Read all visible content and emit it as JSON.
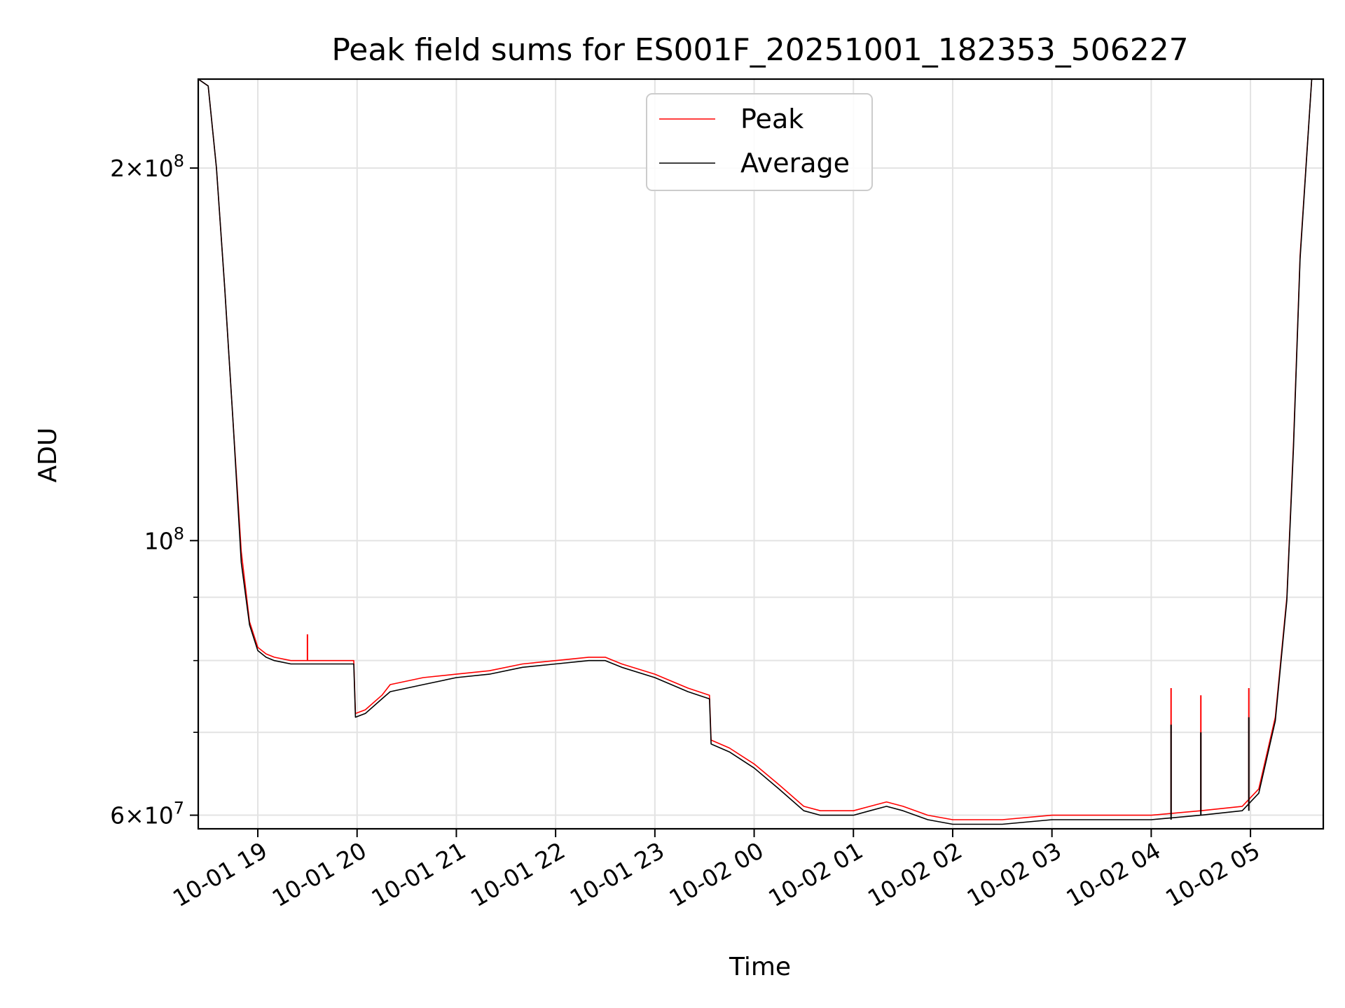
{
  "chart_data": {
    "type": "line",
    "title": "Peak field sums for ES001F_20251001_182353_506227",
    "xlabel": "Time",
    "ylabel": "ADU",
    "yscale": "log",
    "xlim": [
      "2025-10-01 18:24",
      "2025-10-02 05:44"
    ],
    "ylim": [
      58500000,
      236000000
    ],
    "grid": true,
    "legend_position": "top-center",
    "x_ticks": [
      "10-01 19",
      "10-01 20",
      "10-01 21",
      "10-01 22",
      "10-01 23",
      "10-02 00",
      "10-02 01",
      "10-02 02",
      "10-02 03",
      "10-02 04",
      "10-02 05"
    ],
    "y_major_ticks": [
      {
        "value": 60000000,
        "mantissa": "6",
        "exp": "7"
      },
      {
        "value": 100000000,
        "mantissa": "",
        "exp": "8"
      },
      {
        "value": 200000000,
        "mantissa": "2",
        "exp": "8"
      }
    ],
    "y_minor_ticks": [
      70000000,
      80000000,
      90000000
    ],
    "series": [
      {
        "name": "Peak",
        "color": "#ff0000",
        "x": [
          "2025-10-01 18:24",
          "2025-10-01 18:30",
          "2025-10-01 18:35",
          "2025-10-01 18:40",
          "2025-10-01 18:45",
          "2025-10-01 18:50",
          "2025-10-01 18:55",
          "2025-10-01 19:00",
          "2025-10-01 19:05",
          "2025-10-01 19:10",
          "2025-10-01 19:20",
          "2025-10-01 19:30",
          "2025-10-01 19:40",
          "2025-10-01 19:50",
          "2025-10-01 19:58",
          "2025-10-01 19:59",
          "2025-10-01 20:05",
          "2025-10-01 20:15",
          "2025-10-01 20:20",
          "2025-10-01 20:40",
          "2025-10-01 21:00",
          "2025-10-01 21:20",
          "2025-10-01 21:40",
          "2025-10-01 22:00",
          "2025-10-01 22:20",
          "2025-10-01 22:30",
          "2025-10-01 22:40",
          "2025-10-01 23:00",
          "2025-10-01 23:20",
          "2025-10-01 23:33",
          "2025-10-01 23:34",
          "2025-10-01 23:45",
          "2025-10-02 00:00",
          "2025-10-02 00:15",
          "2025-10-02 00:30",
          "2025-10-02 00:40",
          "2025-10-02 01:00",
          "2025-10-02 01:10",
          "2025-10-02 01:20",
          "2025-10-02 01:30",
          "2025-10-02 01:45",
          "2025-10-02 02:00",
          "2025-10-02 02:30",
          "2025-10-02 03:00",
          "2025-10-02 03:30",
          "2025-10-02 04:00",
          "2025-10-02 04:30",
          "2025-10-02 04:55",
          "2025-10-02 05:05",
          "2025-10-02 05:15",
          "2025-10-02 05:22",
          "2025-10-02 05:26",
          "2025-10-02 05:30",
          "2025-10-02 05:37",
          "2025-10-02 05:44"
        ],
        "values": [
          236000000,
          233000000,
          200000000,
          160000000,
          125000000,
          98000000,
          86000000,
          82000000,
          81000000,
          80500000,
          80000000,
          80000000,
          80000000,
          80000000,
          80000000,
          72500000,
          73000000,
          75000000,
          76500000,
          77500000,
          78000000,
          78500000,
          79500000,
          80000000,
          80500000,
          80500000,
          79500000,
          78000000,
          76000000,
          75000000,
          69000000,
          68000000,
          66000000,
          63500000,
          61000000,
          60500000,
          60500000,
          61000000,
          61500000,
          61000000,
          60000000,
          59500000,
          59500000,
          60000000,
          60000000,
          60000000,
          60500000,
          61000000,
          63000000,
          72000000,
          90000000,
          120000000,
          170000000,
          236000000,
          236000000
        ]
      },
      {
        "name": "Average",
        "color": "#000000",
        "x": [
          "2025-10-01 18:24",
          "2025-10-01 18:30",
          "2025-10-01 18:35",
          "2025-10-01 18:40",
          "2025-10-01 18:45",
          "2025-10-01 18:50",
          "2025-10-01 18:55",
          "2025-10-01 19:00",
          "2025-10-01 19:05",
          "2025-10-01 19:10",
          "2025-10-01 19:20",
          "2025-10-01 19:30",
          "2025-10-01 19:40",
          "2025-10-01 19:50",
          "2025-10-01 19:58",
          "2025-10-01 19:59",
          "2025-10-01 20:05",
          "2025-10-01 20:15",
          "2025-10-01 20:20",
          "2025-10-01 20:40",
          "2025-10-01 21:00",
          "2025-10-01 21:20",
          "2025-10-01 21:40",
          "2025-10-01 22:00",
          "2025-10-01 22:20",
          "2025-10-01 22:30",
          "2025-10-01 22:40",
          "2025-10-01 23:00",
          "2025-10-01 23:20",
          "2025-10-01 23:33",
          "2025-10-01 23:34",
          "2025-10-01 23:45",
          "2025-10-02 00:00",
          "2025-10-02 00:15",
          "2025-10-02 00:30",
          "2025-10-02 00:40",
          "2025-10-02 01:00",
          "2025-10-02 01:10",
          "2025-10-02 01:20",
          "2025-10-02 01:30",
          "2025-10-02 01:45",
          "2025-10-02 02:00",
          "2025-10-02 02:30",
          "2025-10-02 03:00",
          "2025-10-02 03:30",
          "2025-10-02 04:00",
          "2025-10-02 04:30",
          "2025-10-02 04:55",
          "2025-10-02 05:05",
          "2025-10-02 05:15",
          "2025-10-02 05:22",
          "2025-10-02 05:26",
          "2025-10-02 05:30",
          "2025-10-02 05:37",
          "2025-10-02 05:44"
        ],
        "values": [
          236000000,
          233000000,
          200000000,
          160000000,
          125000000,
          96000000,
          85500000,
          81500000,
          80500000,
          80000000,
          79500000,
          79500000,
          79500000,
          79500000,
          79500000,
          72000000,
          72500000,
          74500000,
          75500000,
          76500000,
          77500000,
          78000000,
          79000000,
          79500000,
          80000000,
          80000000,
          79000000,
          77500000,
          75500000,
          74500000,
          68500000,
          67500000,
          65500000,
          63000000,
          60500000,
          60000000,
          60000000,
          60500000,
          61000000,
          60500000,
          59500000,
          59000000,
          59000000,
          59500000,
          59500000,
          59500000,
          60000000,
          60500000,
          62500000,
          71500000,
          89500000,
          119000000,
          169000000,
          236000000,
          236000000
        ]
      }
    ],
    "spikes": [
      {
        "series": "Peak",
        "x": "2025-10-01 19:30",
        "value": 84000000
      },
      {
        "series": "Peak",
        "x": "2025-10-02 04:12",
        "value": 76000000
      },
      {
        "series": "Average",
        "x": "2025-10-02 04:12",
        "value": 71000000
      },
      {
        "series": "Peak",
        "x": "2025-10-02 04:30",
        "value": 75000000
      },
      {
        "series": "Average",
        "x": "2025-10-02 04:30",
        "value": 70000000
      },
      {
        "series": "Peak",
        "x": "2025-10-02 04:59",
        "value": 76000000
      },
      {
        "series": "Average",
        "x": "2025-10-02 04:59",
        "value": 72000000
      }
    ]
  }
}
